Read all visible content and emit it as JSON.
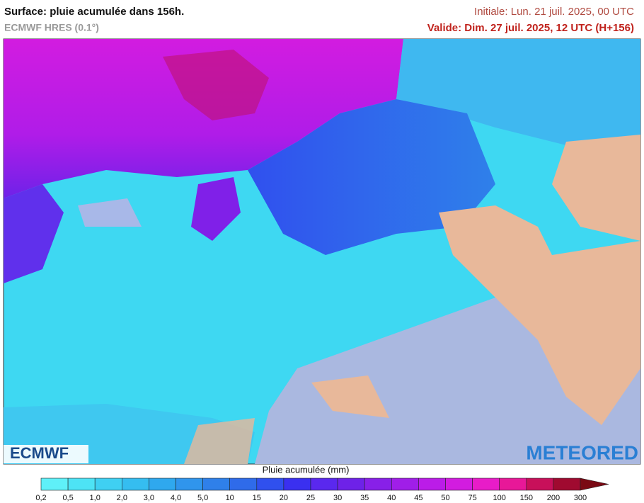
{
  "header": {
    "title": "Surface: pluie acumulée dans 156h.",
    "subtitle": "ECMWF HRES (0.1°)",
    "initial": "Initiale: Lun. 21 juil. 2025, 00 UTC",
    "valid": "Valide: Dim. 27 juil. 2025, 12 UTC (H+156)"
  },
  "logos": {
    "left": "ECMWF",
    "right": "METEORED"
  },
  "legend": {
    "title": "Pluie acumulée (mm)",
    "labels": [
      "0,2",
      "0,5",
      "1,0",
      "2,0",
      "3,0",
      "4,0",
      "5,0",
      "10",
      "15",
      "20",
      "25",
      "30",
      "35",
      "40",
      "45",
      "50",
      "75",
      "100",
      "150",
      "200",
      "300"
    ],
    "colors": [
      "#5ff0f8",
      "#4de3f5",
      "#3fd0f2",
      "#35bdf0",
      "#2fa8ee",
      "#3095ec",
      "#2f80ea",
      "#2f6bea",
      "#3050ee",
      "#3a30f0",
      "#5a28ee",
      "#6e22e8",
      "#8820e8",
      "#a01ee8",
      "#bb1ce8",
      "#d21ce0",
      "#e81cc8",
      "#e81898",
      "#c8105a",
      "#a00a30",
      "#7a0a14"
    ]
  }
}
